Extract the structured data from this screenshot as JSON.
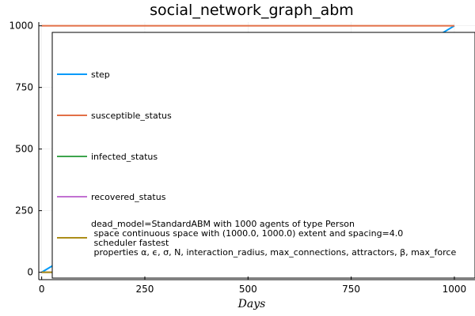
{
  "chart_data": {
    "type": "line",
    "title": "social_network_graph_abm",
    "xlabel": "Days",
    "ylabel": "",
    "xlim": [
      -7,
      1050
    ],
    "ylim": [
      -30,
      1015
    ],
    "xticks": [
      0,
      250,
      500,
      750,
      1000
    ],
    "yticks": [
      0,
      250,
      500,
      750,
      1000
    ],
    "grid": true,
    "legend_placement": "inside-left",
    "series": [
      {
        "name": "step",
        "color": "#009af9",
        "x": [
          0,
          1000
        ],
        "y": [
          0,
          1000
        ]
      },
      {
        "name": "susceptible_status",
        "color": "#e26f46",
        "x": [
          0,
          1000
        ],
        "y": [
          1000,
          1000
        ]
      },
      {
        "name": "infected_status",
        "color": "#3da44d",
        "x": [
          0,
          1000
        ],
        "y": [
          0,
          0
        ]
      },
      {
        "name": "recovered_status",
        "color": "#c271d2",
        "x": [
          0,
          1000
        ],
        "y": [
          0,
          0
        ]
      },
      {
        "name": "dead_model=StandardABM with 1000 agents of type Person\n space  continuous space with (1000.0, 1000.0) extent and spacing=4.0\n scheduler fastest\n properties α, ϵ, σ, N, interaction_radius, max_connections, attractors, β, max_force",
        "color": "#ac8d18",
        "x": [
          0,
          1000
        ],
        "y": [
          0,
          0
        ]
      }
    ]
  }
}
